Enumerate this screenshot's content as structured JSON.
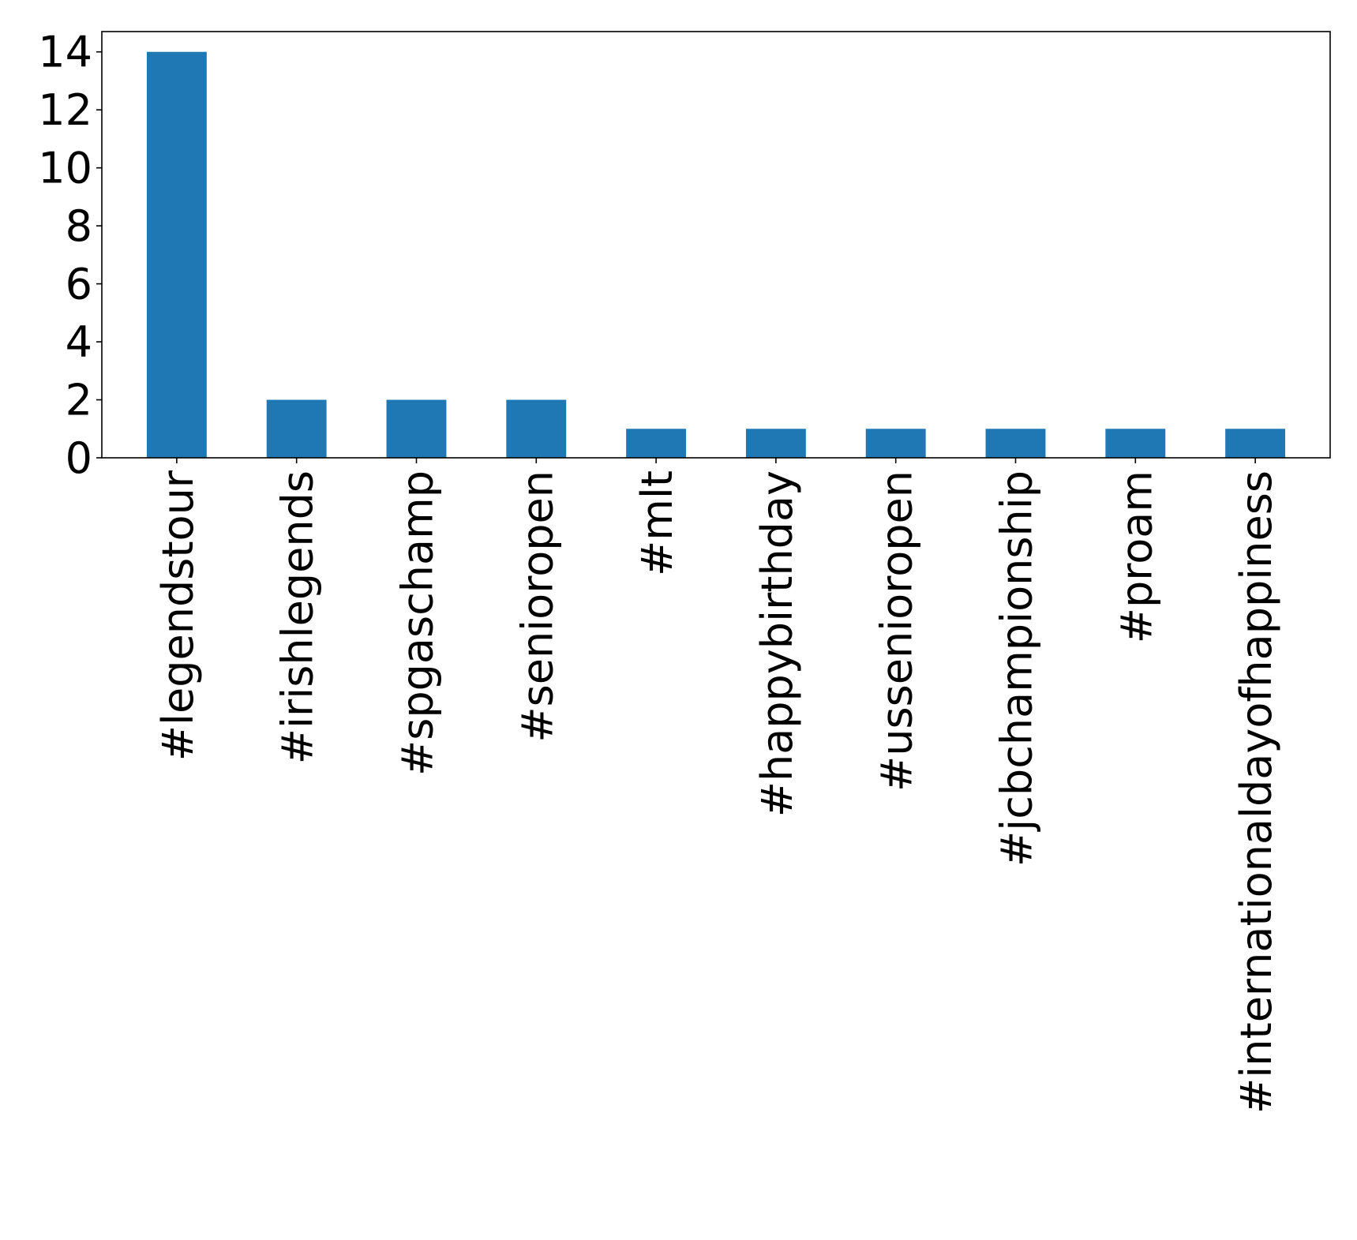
{
  "chart_data": {
    "type": "bar",
    "title": "",
    "xlabel": "",
    "ylabel": "",
    "categories": [
      "#legendstour",
      "#irishlegends",
      "#spgaschamp",
      "#senioropen",
      "#mlt",
      "#happybirthday",
      "#ussenioropen",
      "#jcbchampionship",
      "#proam",
      "#internationaldayofhappiness"
    ],
    "values": [
      14,
      2,
      2,
      2,
      1,
      1,
      1,
      1,
      1,
      1
    ],
    "ylim": [
      0,
      14.7
    ],
    "yticks": [
      0,
      2,
      4,
      6,
      8,
      10,
      12,
      14
    ],
    "grid": false,
    "legend": "none",
    "bar_color": "#1f77b4",
    "axis_color": "#000000"
  }
}
